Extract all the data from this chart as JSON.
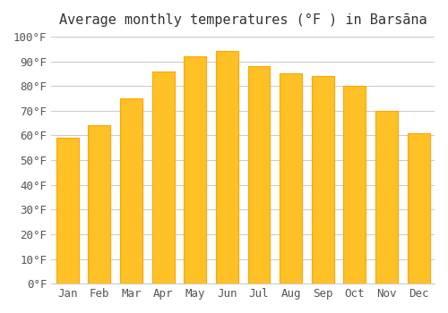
{
  "title": "Average monthly temperatures (°F ) in Barsāna",
  "months": [
    "Jan",
    "Feb",
    "Mar",
    "Apr",
    "May",
    "Jun",
    "Jul",
    "Aug",
    "Sep",
    "Oct",
    "Nov",
    "Dec"
  ],
  "values": [
    59,
    64,
    75,
    86,
    92,
    94,
    88,
    85,
    84,
    80,
    70,
    61
  ],
  "bar_color_face": "#FFC125",
  "bar_color_edge": "#FFA500",
  "background_color": "#FFFFFF",
  "ylim": [
    0,
    100
  ],
  "yticks": [
    0,
    10,
    20,
    30,
    40,
    50,
    60,
    70,
    80,
    90,
    100
  ],
  "ylabel_suffix": "°F",
  "grid_color": "#CCCCCC",
  "title_fontsize": 11,
  "tick_fontsize": 9
}
